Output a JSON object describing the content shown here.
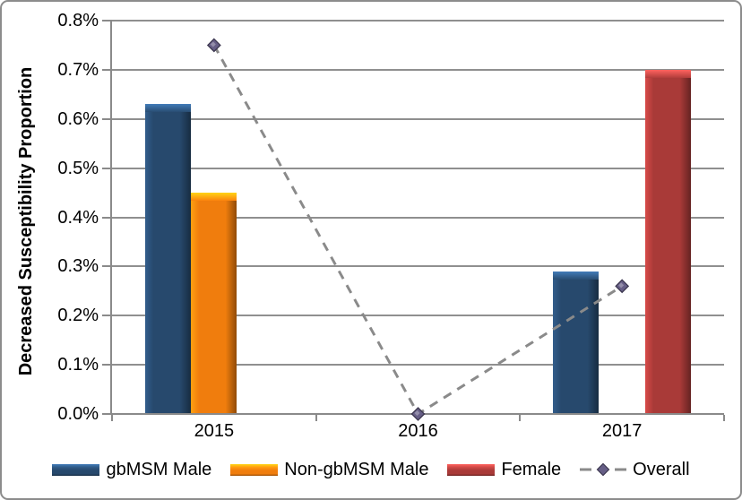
{
  "chart_data": {
    "type": "bar+line",
    "title": "",
    "ylabel": "Decreased Susceptibility Proportion",
    "xlabel": "",
    "categories": [
      "2015",
      "2016",
      "2017"
    ],
    "series": [
      {
        "name": "gbMSM Male",
        "type": "bar",
        "color": "#27496D",
        "values": [
          0.63,
          null,
          0.29
        ]
      },
      {
        "name": "Non-gbMSM Male",
        "type": "bar",
        "color": "#F07D0D",
        "values": [
          0.45,
          null,
          null
        ]
      },
      {
        "name": "Female",
        "type": "bar",
        "color": "#A93A38",
        "values": [
          null,
          null,
          0.7
        ]
      },
      {
        "name": "Overall",
        "type": "line",
        "color": "#8A8A8A",
        "marker_color": "#665E86",
        "dashed": true,
        "values": [
          0.75,
          0.0,
          0.26
        ]
      }
    ],
    "ylim": [
      0,
      0.8
    ],
    "ytick_step": 0.1,
    "yticks": [
      "0.0%",
      "0.1%",
      "0.2%",
      "0.3%",
      "0.4%",
      "0.5%",
      "0.6%",
      "0.7%",
      "0.8%"
    ],
    "grid": true,
    "legend_position": "bottom",
    "axis_color": "#8A8A8A",
    "gridline_color": "#8F8F8F"
  }
}
